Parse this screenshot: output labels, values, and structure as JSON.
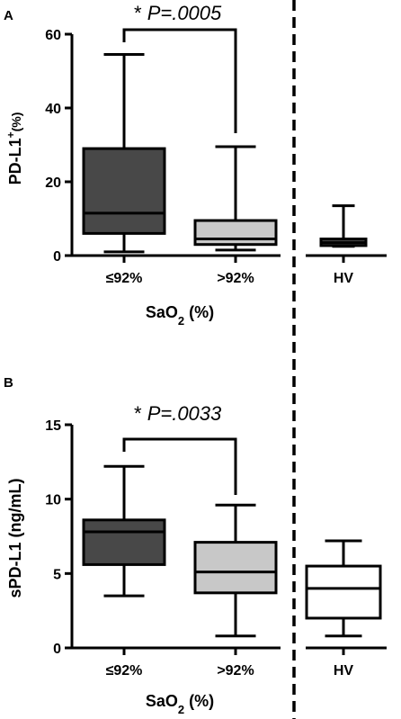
{
  "panels": [
    {
      "panel_label": "A",
      "significance": {
        "star": "* ",
        "p_label": "P=.0005"
      },
      "ylabel": {
        "main": "PD-L1",
        "sup": "+",
        "unit": "(%)"
      },
      "xlabel": {
        "main": "SaO",
        "sub": "2",
        "unit": " (%)"
      }
    },
    {
      "panel_label": "B",
      "significance": {
        "star": "* ",
        "p_label": "P=.0033"
      },
      "ylabel": {
        "main": "sPD-L1 (ng/mL)",
        "sup": "",
        "unit": ""
      },
      "xlabel": {
        "main": "SaO",
        "sub": "2",
        "unit": " (%)"
      }
    }
  ],
  "chart_data": [
    {
      "type": "box",
      "title": "",
      "categories": [
        "≤92%",
        ">92%",
        "HV"
      ],
      "ylim": [
        0,
        60
      ],
      "yticks": [
        0,
        20,
        40,
        60
      ],
      "grid": false,
      "separator_after_category": ">92%",
      "boxes": [
        {
          "category": "≤92%",
          "min": 1,
          "q1": 6,
          "median": 11.5,
          "q3": 29,
          "max": 54.5,
          "fill": "#484848"
        },
        {
          "category": ">92%",
          "min": 1.5,
          "q1": 3,
          "median": 4.5,
          "q3": 9.5,
          "max": 29.5,
          "fill": "#c8c8c8"
        },
        {
          "category": "HV",
          "min": 2.5,
          "q1": 2.7,
          "median": 3.5,
          "q3": 4.5,
          "max": 13.5,
          "fill": "#484848"
        }
      ],
      "comparison": {
        "from": "≤92%",
        "to": ">92%",
        "p": ".0005"
      }
    },
    {
      "type": "box",
      "title": "",
      "categories": [
        "≤92%",
        ">92%",
        "HV"
      ],
      "ylim": [
        0,
        15
      ],
      "yticks": [
        0,
        5,
        10,
        15
      ],
      "grid": false,
      "separator_after_category": ">92%",
      "boxes": [
        {
          "category": "≤92%",
          "min": 3.5,
          "q1": 5.6,
          "median": 7.8,
          "q3": 8.6,
          "max": 12.2,
          "fill": "#484848"
        },
        {
          "category": ">92%",
          "min": 0.8,
          "q1": 3.7,
          "median": 5.1,
          "q3": 7.1,
          "max": 9.6,
          "fill": "#c8c8c8"
        },
        {
          "category": "HV",
          "min": 0.8,
          "q1": 2.0,
          "median": 4.0,
          "q3": 5.5,
          "max": 7.2,
          "fill": "#ffffff"
        }
      ],
      "comparison": {
        "from": "≤92%",
        "to": ">92%",
        "p": ".0033"
      }
    }
  ]
}
